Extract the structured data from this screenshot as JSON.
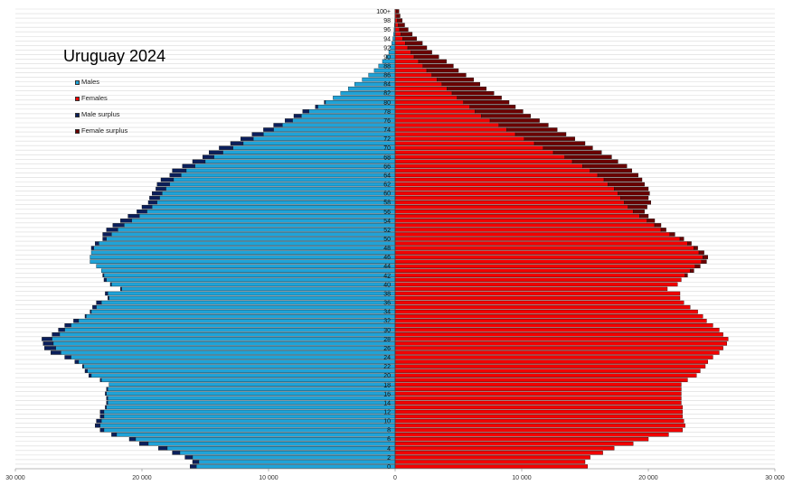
{
  "chart_data": {
    "type": "bar",
    "orientation": "horizontal-population-pyramid",
    "title": "Uruguay 2024",
    "ages": [
      0,
      1,
      2,
      3,
      4,
      5,
      6,
      7,
      8,
      9,
      10,
      11,
      12,
      13,
      14,
      15,
      16,
      17,
      18,
      19,
      20,
      21,
      22,
      23,
      24,
      25,
      26,
      27,
      28,
      29,
      30,
      31,
      32,
      33,
      34,
      35,
      36,
      37,
      38,
      39,
      40,
      41,
      42,
      43,
      44,
      45,
      46,
      47,
      48,
      49,
      50,
      51,
      52,
      53,
      54,
      55,
      56,
      57,
      58,
      59,
      60,
      61,
      62,
      63,
      64,
      65,
      66,
      67,
      68,
      69,
      70,
      71,
      72,
      73,
      74,
      75,
      76,
      77,
      78,
      79,
      80,
      81,
      82,
      83,
      84,
      85,
      86,
      87,
      88,
      89,
      90,
      91,
      92,
      93,
      94,
      95,
      96,
      97,
      98,
      99,
      100
    ],
    "age_tick_labels": [
      "0",
      "2",
      "4",
      "6",
      "8",
      "10",
      "12",
      "14",
      "16",
      "18",
      "20",
      "22",
      "24",
      "26",
      "28",
      "30",
      "32",
      "34",
      "36",
      "38",
      "40",
      "42",
      "44",
      "46",
      "48",
      "50",
      "52",
      "54",
      "56",
      "58",
      "60",
      "62",
      "64",
      "66",
      "68",
      "70",
      "72",
      "74",
      "76",
      "78",
      "80",
      "82",
      "84",
      "86",
      "88",
      "90",
      "92",
      "94",
      "96",
      "98",
      "100+"
    ],
    "series": [
      {
        "name": "Males",
        "color": "#1fa3d8",
        "values": [
          15700,
          15500,
          16000,
          17000,
          18000,
          19500,
          20500,
          22000,
          23000,
          23300,
          23200,
          23000,
          23000,
          22800,
          22700,
          22700,
          22800,
          22700,
          22600,
          23200,
          24000,
          24300,
          24600,
          25000,
          25600,
          26400,
          26800,
          27000,
          27100,
          26500,
          26100,
          25600,
          25000,
          24400,
          24000,
          23600,
          23200,
          22600,
          22700,
          21600,
          22400,
          22800,
          23000,
          23200,
          23600,
          24100,
          24100,
          24000,
          23800,
          23400,
          22800,
          22400,
          21900,
          21400,
          20800,
          20200,
          19600,
          19200,
          18800,
          18600,
          18400,
          18100,
          17800,
          17500,
          16900,
          16500,
          15800,
          15000,
          14300,
          13600,
          12800,
          12000,
          11200,
          10400,
          9600,
          8900,
          8100,
          7400,
          6800,
          6100,
          5500,
          4900,
          4300,
          3700,
          3200,
          2600,
          2100,
          1650,
          1300,
          1000,
          700,
          500,
          380,
          260,
          180,
          120,
          80,
          50,
          30,
          20,
          20
        ]
      },
      {
        "name": "Females",
        "color": "#f20000",
        "values": [
          15200,
          15000,
          15400,
          16400,
          17300,
          18800,
          20000,
          21600,
          22700,
          22900,
          22800,
          22700,
          22700,
          22700,
          22600,
          22600,
          22600,
          22600,
          22600,
          23100,
          23800,
          24100,
          24500,
          24700,
          25100,
          25600,
          25900,
          26200,
          26300,
          25900,
          25600,
          25100,
          24600,
          24300,
          23900,
          23300,
          22800,
          22500,
          22500,
          21500,
          22300,
          22600,
          22900,
          23300,
          23700,
          24200,
          24300,
          24000,
          23600,
          23100,
          22500,
          21700,
          21000,
          20500,
          19900,
          19300,
          18800,
          18400,
          18100,
          17800,
          17600,
          17300,
          16800,
          16500,
          16000,
          15400,
          14800,
          14000,
          13400,
          12500,
          11700,
          11000,
          10200,
          9500,
          8800,
          8200,
          7500,
          6800,
          6300,
          5900,
          5400,
          4900,
          4500,
          4100,
          3700,
          3300,
          2900,
          2500,
          2200,
          1850,
          1500,
          1250,
          1000,
          800,
          600,
          450,
          350,
          250,
          180,
          130,
          100
        ]
      },
      {
        "name": "Male surplus",
        "color": "#0a1f5c",
        "values": [
          500,
          500,
          600,
          600,
          700,
          700,
          500,
          400,
          300,
          400,
          400,
          300,
          300,
          100,
          100,
          100,
          100,
          100,
          0,
          100,
          200,
          200,
          100,
          300,
          500,
          800,
          900,
          800,
          800,
          600,
          500,
          500,
          400,
          100,
          100,
          300,
          400,
          100,
          200,
          100,
          100,
          200,
          100,
          0,
          0,
          0,
          0,
          0,
          200,
          300,
          300,
          700,
          900,
          900,
          900,
          900,
          800,
          800,
          700,
          800,
          800,
          800,
          1000,
          1000,
          900,
          1100,
          1000,
          1000,
          900,
          1100,
          1100,
          1000,
          1000,
          900,
          800,
          700,
          600,
          600,
          500,
          200,
          100,
          0,
          0,
          0,
          0,
          0,
          0,
          0,
          0,
          0,
          0,
          0,
          0,
          0,
          0,
          0,
          0,
          0,
          0,
          0,
          0
        ]
      },
      {
        "name": "Female surplus",
        "color": "#6b0000",
        "values": [
          0,
          0,
          0,
          0,
          0,
          0,
          0,
          0,
          0,
          0,
          0,
          0,
          0,
          0,
          0,
          0,
          0,
          0,
          0,
          0,
          0,
          0,
          0,
          0,
          0,
          0,
          0,
          0,
          0,
          0,
          0,
          0,
          0,
          0,
          0,
          0,
          0,
          0,
          0,
          0,
          0,
          0,
          200,
          300,
          400,
          400,
          400,
          400,
          300,
          300,
          300,
          400,
          400,
          500,
          600,
          700,
          900,
          1500,
          2100,
          2200,
          2500,
          2700,
          2900,
          3000,
          3200,
          3300,
          3500,
          3600,
          3700,
          3800,
          3900,
          4000,
          4000,
          4000,
          4000,
          3900,
          3900,
          3900,
          3800,
          3600,
          3600,
          3500,
          3300,
          3100,
          3000,
          2900,
          2700,
          2500,
          2400,
          2200,
          1950,
          1650,
          1500,
          1350,
          1100,
          900,
          680,
          500,
          380,
          260,
          200
        ]
      }
    ],
    "xaxis": {
      "range": [
        -30000,
        30000
      ],
      "tick_values": [
        -30000,
        -20000,
        -10000,
        0,
        10000,
        20000,
        30000
      ],
      "tick_labels": [
        "30 000",
        "20 000",
        "10 000",
        "0",
        "10 000",
        "20 000",
        "30 000"
      ]
    },
    "grid": true,
    "legend_placement": "top-left"
  }
}
